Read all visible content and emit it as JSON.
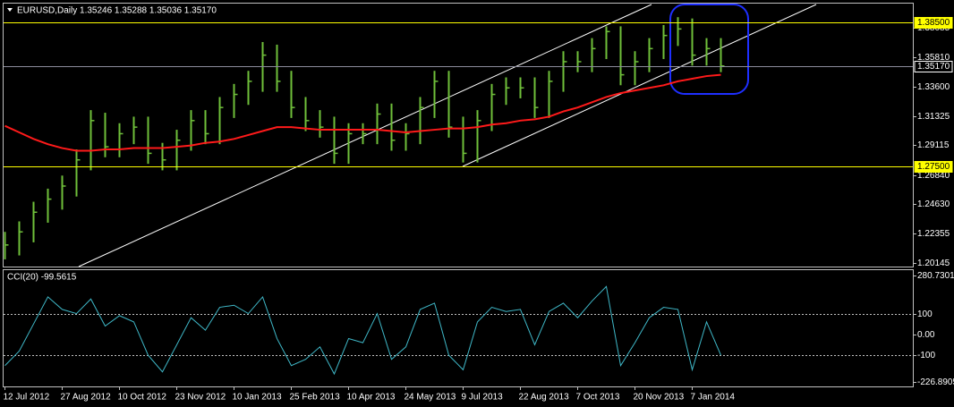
{
  "chart_data": [
    {
      "type": "ohlc",
      "title": "EURUSD,Daily  1.35246 1.35288 1.35036 1.35170",
      "color": "#6fbf3a",
      "ma_color": "#ff1a1a",
      "categories": [
        "12 Jul 2012",
        null,
        null,
        null,
        "27 Aug 2012",
        null,
        null,
        null,
        "10 Oct 2012",
        null,
        null,
        null,
        "23 Nov 2012",
        null,
        null,
        null,
        "10 Jan 2013",
        null,
        null,
        null,
        "25 Feb 2013",
        null,
        null,
        null,
        "10 Apr 2013",
        null,
        null,
        null,
        "24 May 2013",
        null,
        null,
        null,
        "9 Jul 2013",
        null,
        null,
        null,
        "22 Aug 2013",
        null,
        null,
        null,
        "7 Oct 2013",
        null,
        null,
        null,
        "20 Nov 2013",
        null,
        null,
        null,
        "7 Jan 2014",
        null,
        null
      ],
      "high": [
        1.225,
        1.233,
        1.248,
        1.258,
        1.268,
        1.288,
        1.318,
        1.316,
        1.308,
        1.313,
        1.313,
        1.293,
        1.303,
        1.318,
        1.318,
        1.328,
        1.338,
        1.348,
        1.37,
        1.368,
        1.348,
        1.328,
        1.318,
        1.313,
        1.308,
        1.308,
        1.323,
        1.323,
        1.308,
        1.328,
        1.348,
        1.348,
        1.313,
        1.318,
        1.338,
        1.343,
        1.343,
        1.343,
        1.348,
        1.363,
        1.363,
        1.373,
        1.382,
        1.382,
        1.363,
        1.373,
        1.383,
        1.389,
        1.388,
        1.373,
        1.373
      ],
      "low": [
        1.204,
        1.207,
        1.217,
        1.232,
        1.242,
        1.252,
        1.272,
        1.282,
        1.282,
        1.292,
        1.277,
        1.272,
        1.272,
        1.287,
        1.292,
        1.292,
        1.312,
        1.322,
        1.332,
        1.332,
        1.312,
        1.302,
        1.297,
        1.277,
        1.277,
        1.292,
        1.292,
        1.287,
        1.287,
        1.292,
        1.312,
        1.297,
        1.278,
        1.278,
        1.302,
        1.322,
        1.327,
        1.312,
        1.312,
        1.332,
        1.347,
        1.347,
        1.357,
        1.337,
        1.337,
        1.347,
        1.357,
        1.367,
        1.352,
        1.352,
        1.347
      ],
      "close": [
        1.215,
        1.225,
        1.24,
        1.25,
        1.26,
        1.28,
        1.31,
        1.29,
        1.3,
        1.305,
        1.285,
        1.28,
        1.295,
        1.31,
        1.3,
        1.32,
        1.33,
        1.34,
        1.36,
        1.34,
        1.32,
        1.31,
        1.305,
        1.285,
        1.3,
        1.3,
        1.315,
        1.295,
        1.3,
        1.32,
        1.34,
        1.305,
        1.285,
        1.31,
        1.33,
        1.335,
        1.335,
        1.32,
        1.34,
        1.355,
        1.355,
        1.365,
        1.378,
        1.345,
        1.355,
        1.365,
        1.375,
        1.38,
        1.36,
        1.365,
        1.3517
      ],
      "ma": [
        1.306,
        1.301,
        1.296,
        1.292,
        1.289,
        1.287,
        1.287,
        1.288,
        1.288,
        1.289,
        1.289,
        1.289,
        1.29,
        1.291,
        1.293,
        1.294,
        1.296,
        1.299,
        1.302,
        1.305,
        1.305,
        1.304,
        1.303,
        1.303,
        1.303,
        1.303,
        1.303,
        1.302,
        1.301,
        1.302,
        1.303,
        1.304,
        1.304,
        1.305,
        1.307,
        1.308,
        1.31,
        1.311,
        1.313,
        1.317,
        1.32,
        1.324,
        1.328,
        1.331,
        1.333,
        1.335,
        1.337,
        1.34,
        1.342,
        1.344,
        1.345
      ],
      "ylim": [
        1.1985,
        1.3987
      ],
      "yticks": [
        1.38085,
        {
          "value": 1.3581,
          "label": "1.35810"
        },
        {
          "value": 1.336,
          "label": "1.33600"
        },
        1.31325,
        1.29115,
        {
          "value": 1.2684,
          "label": "1.26840"
        },
        {
          "value": 1.2463,
          "label": "1.24630"
        },
        1.22355,
        1.20145
      ],
      "levels": [
        {
          "value": 1.385,
          "label": "1.38500",
          "color": "#ffff00"
        },
        {
          "value": 1.275,
          "label": "1.27500",
          "color": "#ffff00"
        },
        {
          "value": 1.3517,
          "label": "1.35170",
          "color": "#8c8c9c"
        }
      ]
    },
    {
      "type": "line",
      "title": "CCI(20) -99.5615",
      "color": "#3fb8c8",
      "values": [
        -150,
        -80,
        50,
        180,
        120,
        100,
        170,
        40,
        90,
        60,
        -100,
        -180,
        -50,
        80,
        20,
        130,
        140,
        100,
        180,
        -20,
        -150,
        -120,
        -60,
        -190,
        -20,
        -40,
        100,
        -120,
        -60,
        120,
        150,
        -100,
        -170,
        60,
        130,
        110,
        120,
        -50,
        110,
        150,
        80,
        160,
        230,
        -150,
        -40,
        80,
        130,
        120,
        -170,
        60,
        -100
      ],
      "ylim": [
        -250,
        300
      ],
      "yticks": [
        280.7301,
        100,
        {
          "value": 0,
          "label": "0.00"
        },
        -100,
        -226.8905
      ],
      "levels": [
        100,
        -100
      ]
    }
  ]
}
